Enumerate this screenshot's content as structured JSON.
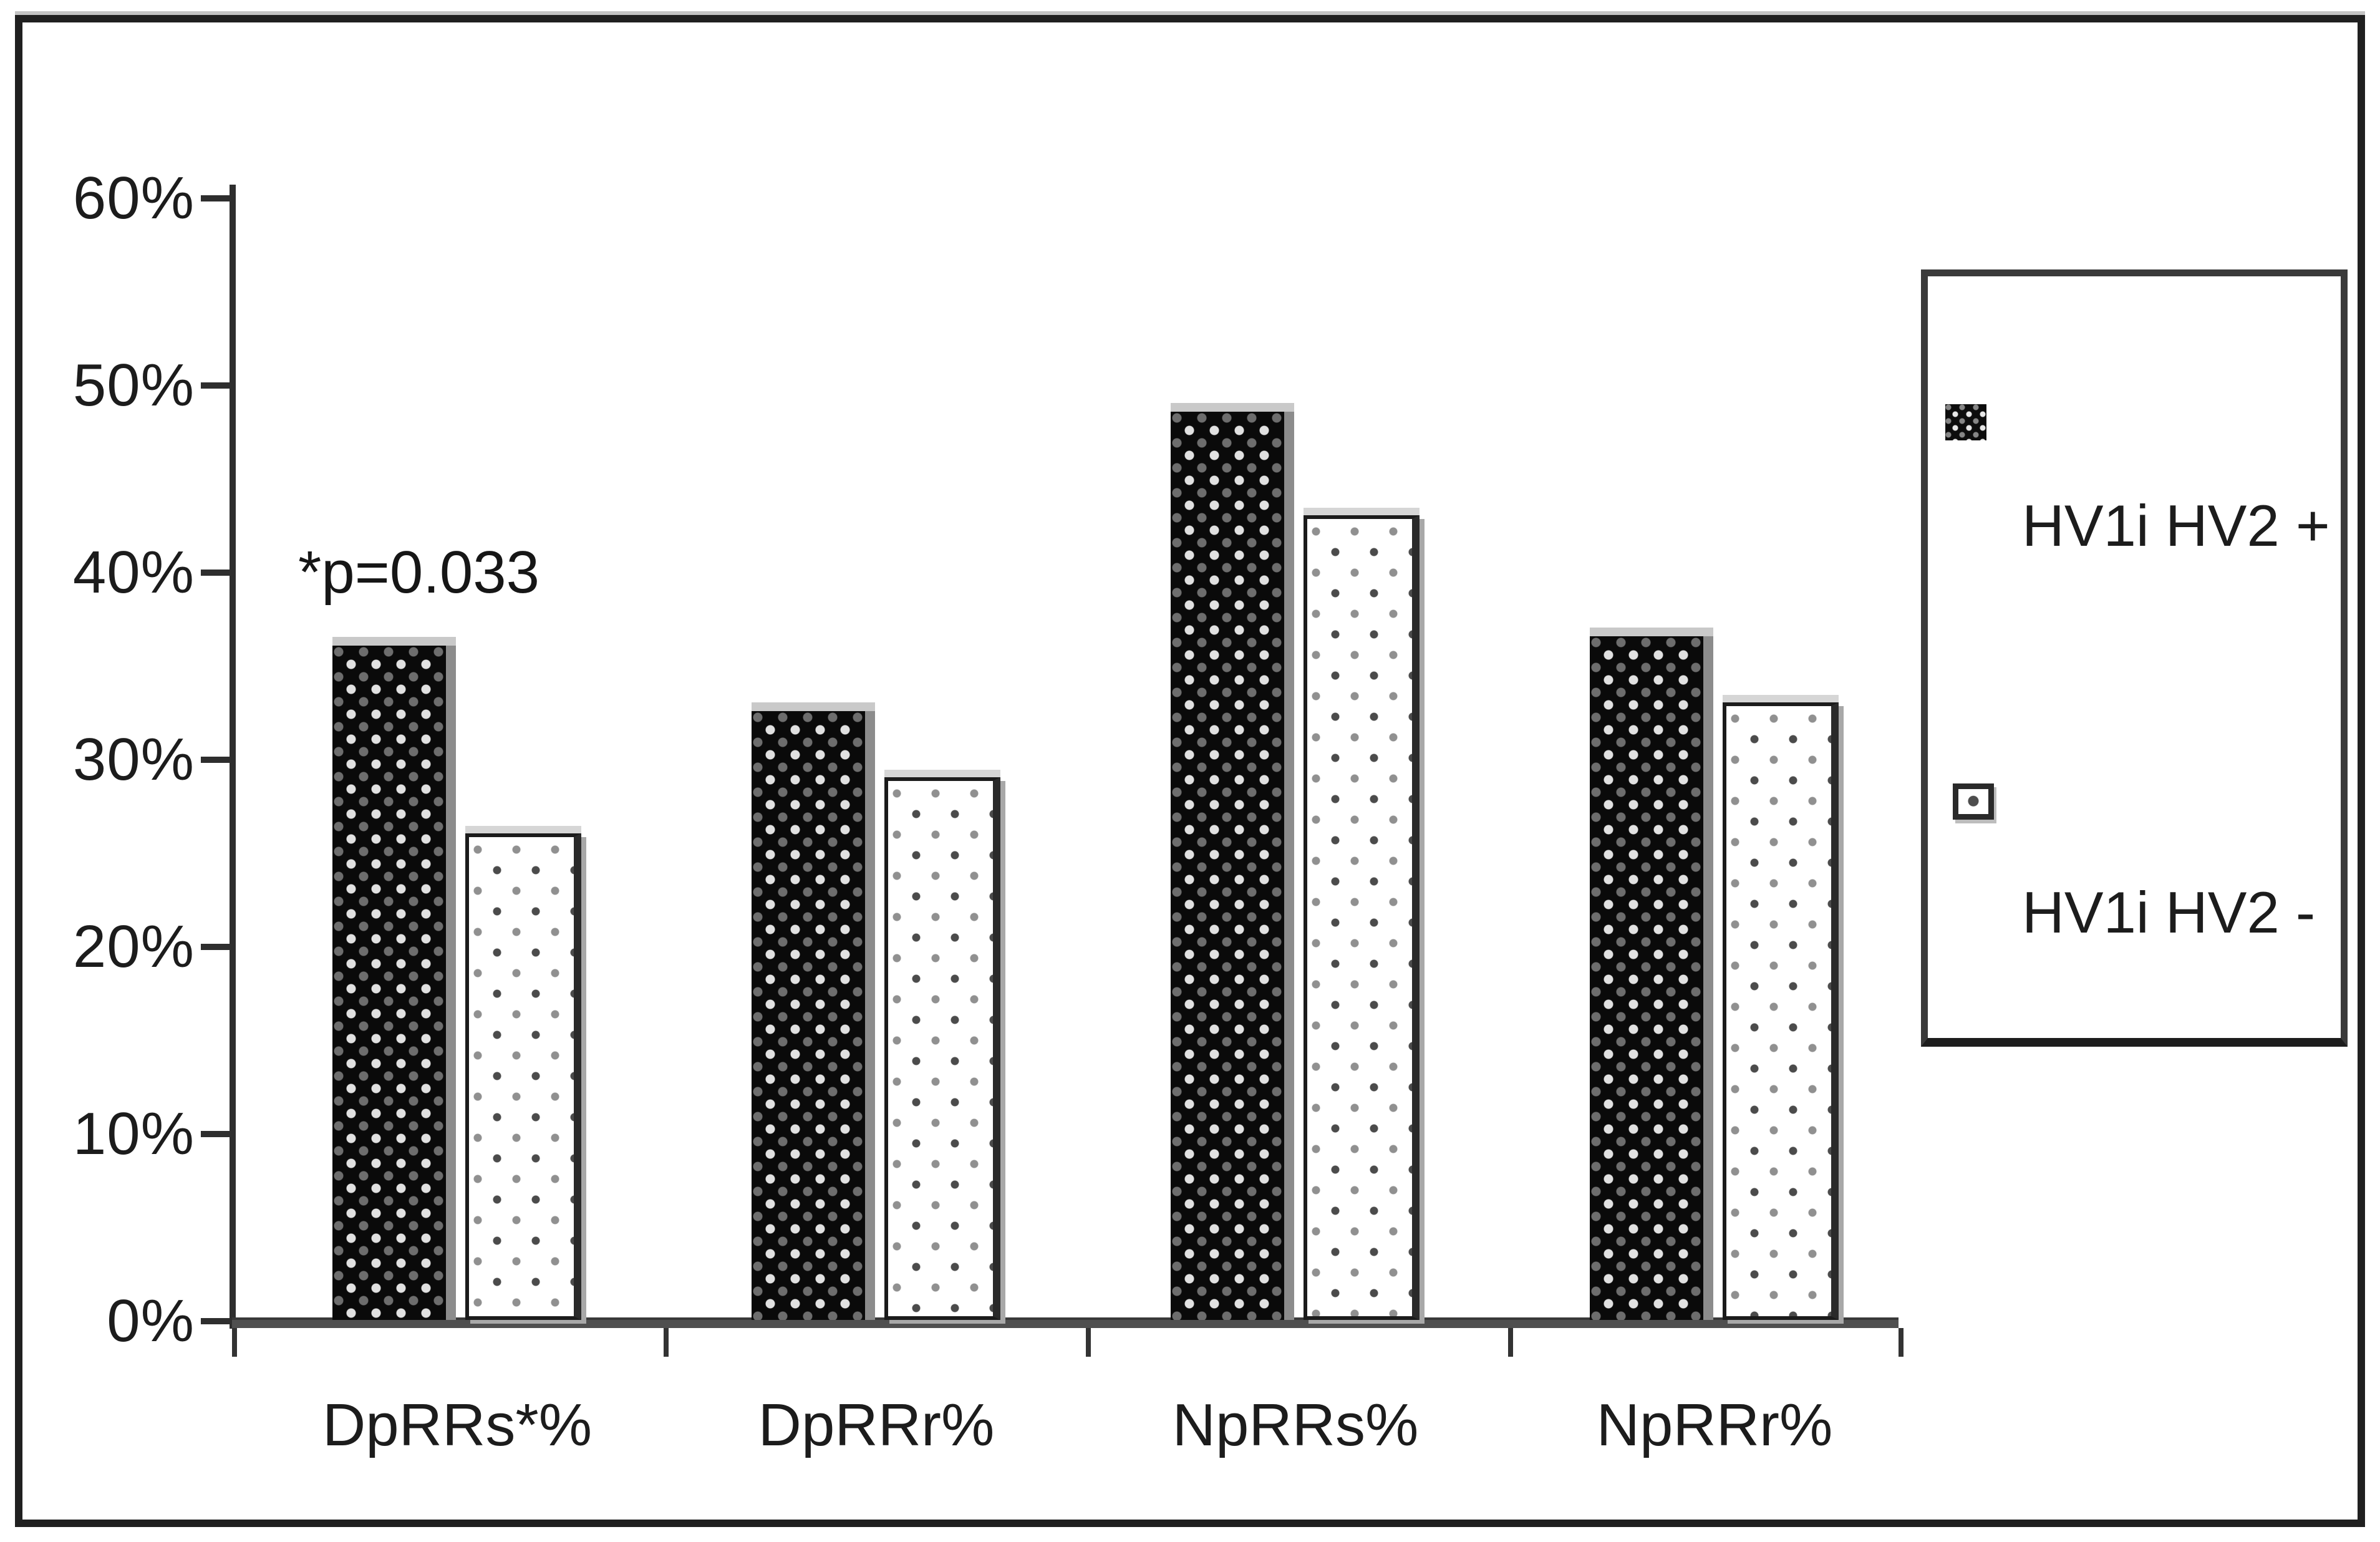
{
  "chart_data": {
    "type": "bar",
    "title": "",
    "xlabel": "",
    "ylabel": "",
    "categories": [
      "DpRRs*%",
      "DpRRr%",
      "NpRRs%",
      "NpRRr%"
    ],
    "series": [
      {
        "name": "HV1i HV2 +",
        "swatch": "black-checker-pattern",
        "values": [
          36.5,
          33,
          49,
          37
        ]
      },
      {
        "name": "HV1i HV2 -",
        "swatch": "white-dotted-pattern",
        "values": [
          26,
          29,
          43,
          33
        ]
      }
    ],
    "ylim": [
      0,
      60
    ],
    "ytick_step": 10,
    "ytick_labels": [
      "0%",
      "10%",
      "20%",
      "30%",
      "40%",
      "50%",
      "60%"
    ],
    "grid": false,
    "legend_position": "right",
    "annotations": [
      {
        "text": "*p=0.033",
        "category_index": 0,
        "series": "HV1i HV2 +"
      }
    ]
  },
  "colors": {
    "bar_dark": "#0a0a0a",
    "bar_light_bg": "#ffffff",
    "bar_cap": "#c9c9c9",
    "bar_shadow": "#8c8c8c",
    "axis": "#2e2e2e",
    "baseline": "#4f4f4f",
    "text": "#1c1c1c",
    "frame_border": "#202020",
    "legend_border": "#3a3a3a"
  }
}
